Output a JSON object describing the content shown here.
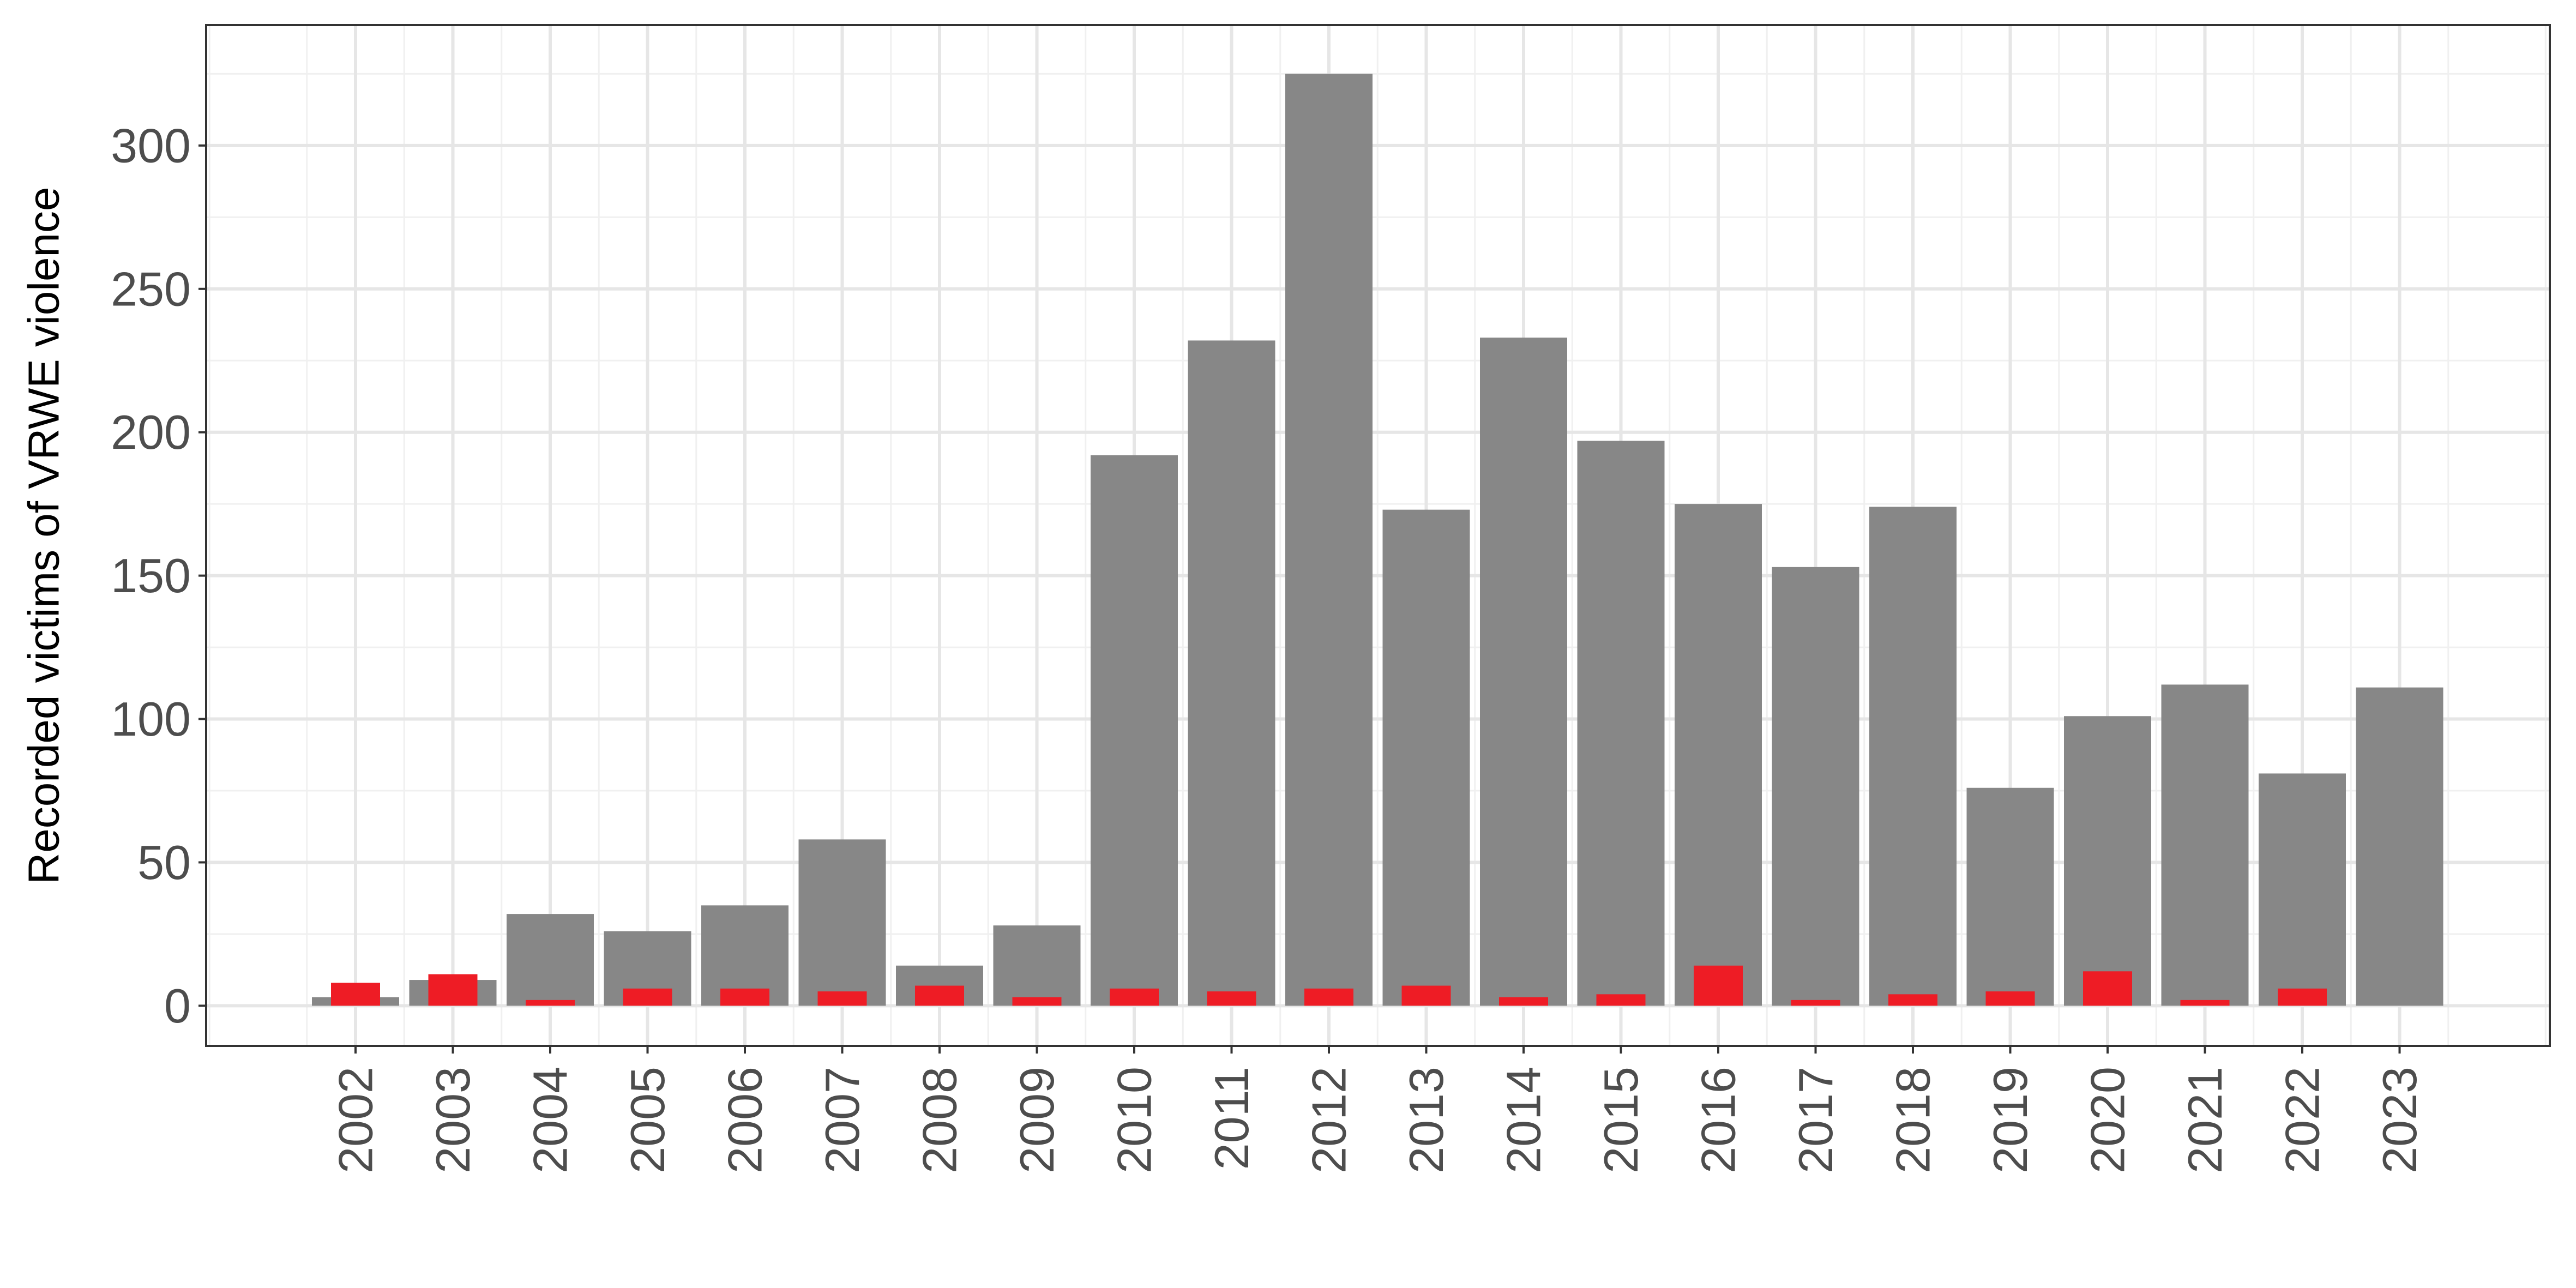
{
  "chart_data": {
    "type": "bar",
    "title": "",
    "xlabel": "",
    "ylabel": "Recorded victims of VRWE violence",
    "ylim": [
      -14,
      342
    ],
    "y_ticks": [
      0,
      50,
      100,
      150,
      200,
      250,
      300
    ],
    "grid": true,
    "legend": "none",
    "categories": [
      "2002",
      "2003",
      "2004",
      "2005",
      "2006",
      "2007",
      "2008",
      "2009",
      "2010",
      "2011",
      "2012",
      "2013",
      "2014",
      "2015",
      "2016",
      "2017",
      "2018",
      "2019",
      "2020",
      "2021",
      "2022",
      "2023"
    ],
    "series": [
      {
        "color": "#878787",
        "values": [
          3,
          9,
          32,
          26,
          35,
          58,
          14,
          28,
          192,
          232,
          325,
          173,
          233,
          197,
          175,
          153,
          174,
          76,
          101,
          112,
          81,
          111
        ]
      },
      {
        "color": "#ee1c25",
        "values": [
          8,
          11,
          2,
          6,
          6,
          5,
          7,
          3,
          6,
          5,
          6,
          7,
          3,
          4,
          14,
          2,
          4,
          5,
          12,
          2,
          6,
          0
        ]
      }
    ]
  }
}
